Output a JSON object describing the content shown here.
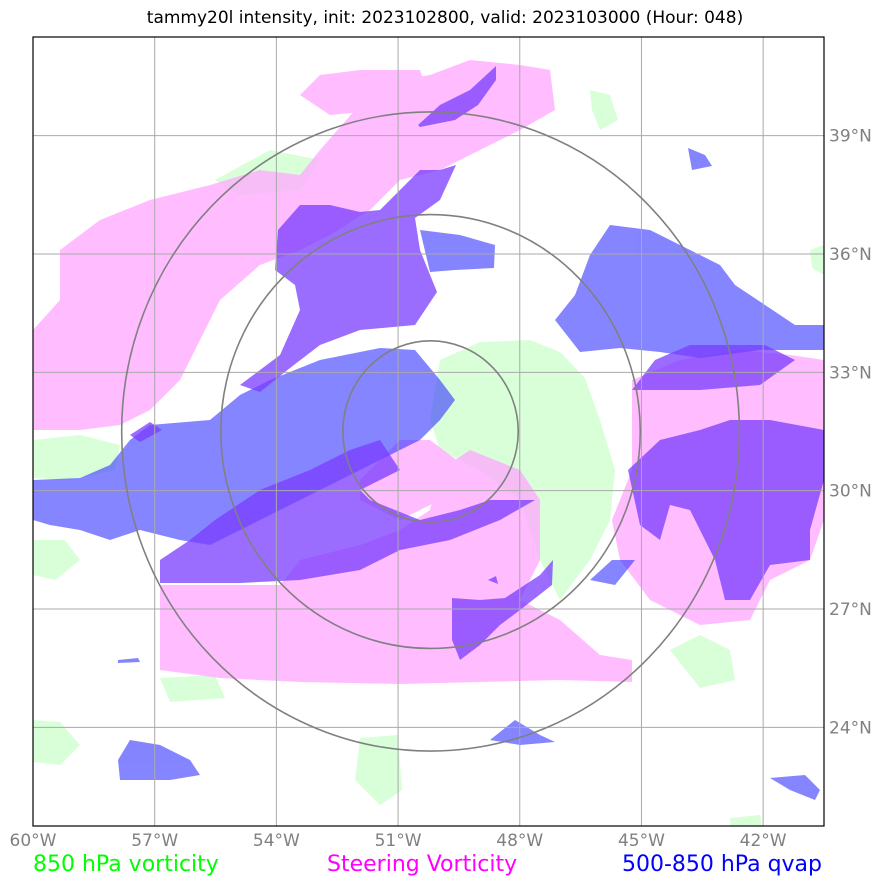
{
  "title": "tammy20l intensity, init: 2023102800, valid: 2023103000 (Hour: 048)",
  "map": {
    "lon_range": [
      -60,
      -40.5
    ],
    "lat_range": [
      21.5,
      41.5
    ],
    "lon_ticks": [
      {
        "value": -60,
        "label": "60°W"
      },
      {
        "value": -57,
        "label": "57°W"
      },
      {
        "value": -54,
        "label": "54°W"
      },
      {
        "value": -51,
        "label": "51°W"
      },
      {
        "value": -48,
        "label": "48°W"
      },
      {
        "value": -45,
        "label": "45°W"
      },
      {
        "value": -42,
        "label": "42°W"
      }
    ],
    "lat_ticks": [
      {
        "value": 24,
        "label": "24°N"
      },
      {
        "value": 27,
        "label": "27°N"
      },
      {
        "value": 30,
        "label": "30°N"
      },
      {
        "value": 33,
        "label": "33°N"
      },
      {
        "value": 36,
        "label": "36°N"
      },
      {
        "value": 39,
        "label": "39°N"
      }
    ],
    "center": {
      "lon": -50.2,
      "lat": 31.5
    },
    "range_rings_deg": [
      2.3,
      5.5,
      8.1
    ]
  },
  "colors": {
    "vort850": "#ccffcc",
    "steering": "#ffaaff",
    "qvap": "#3333ff",
    "purple": "#7a3cff",
    "grid": "#a9a9a9",
    "ring": "#808080"
  },
  "legend": [
    {
      "label": "850 hPa vorticity",
      "color": "#00ff00"
    },
    {
      "label": "Steering Vorticity",
      "color": "#ff00ff"
    },
    {
      "label": "500-850 hPa qvap",
      "color": "#0000ff"
    }
  ]
}
